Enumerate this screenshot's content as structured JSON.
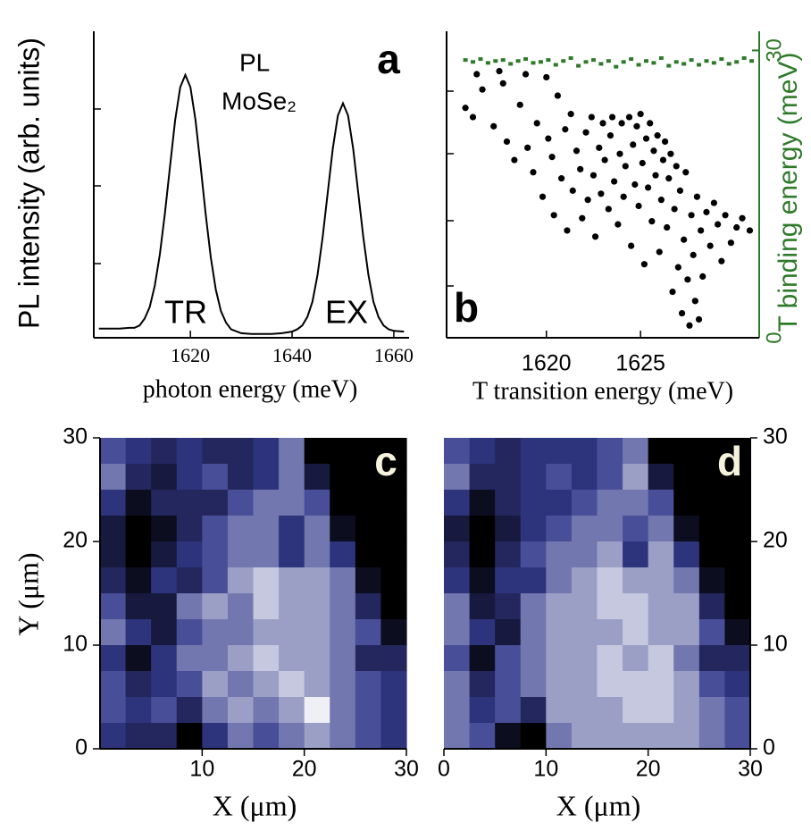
{
  "chart_data": [
    {
      "type": "line",
      "panel_label": "a",
      "ylabel": "PL intensity (arb. units)",
      "xlabel": "photon energy (meV)",
      "annotations": [
        "PL",
        "MoSe₂",
        "TR",
        "EX"
      ],
      "x": [
        1602,
        1604,
        1606,
        1608,
        1609,
        1610,
        1611,
        1612,
        1613,
        1614,
        1615,
        1616,
        1617,
        1618,
        1619,
        1620,
        1621,
        1622,
        1623,
        1624,
        1625,
        1626,
        1627,
        1628,
        1630,
        1632,
        1634,
        1636,
        1638,
        1640,
        1641,
        1642,
        1643,
        1644,
        1645,
        1646,
        1647,
        1648,
        1649,
        1650,
        1651,
        1652,
        1653,
        1654,
        1655,
        1656,
        1657,
        1658,
        1659,
        1660,
        1662
      ],
      "series": [
        {
          "color": "#000000",
          "values": [
            0.12,
            0.12,
            0.12,
            0.13,
            0.13,
            0.16,
            0.25,
            0.4,
            0.68,
            1.09,
            1.63,
            2.24,
            2.84,
            3.27,
            3.43,
            3.27,
            2.84,
            2.24,
            1.61,
            1.05,
            0.63,
            0.35,
            0.2,
            0.11,
            0.06,
            0.05,
            0.05,
            0.05,
            0.06,
            0.08,
            0.11,
            0.16,
            0.27,
            0.47,
            0.82,
            1.31,
            1.89,
            2.47,
            2.9,
            3.06,
            2.9,
            2.47,
            1.89,
            1.31,
            0.82,
            0.47,
            0.27,
            0.16,
            0.11,
            0.09,
            0.08
          ]
        }
      ],
      "xlim": [
        1601,
        1663
      ],
      "xticks": [
        1620,
        1640,
        1660
      ],
      "ylim": [
        0,
        4
      ]
    },
    {
      "type": "scatter",
      "panel_label": "b",
      "xlabel": "T transition energy (meV)",
      "y2label": "T binding energy (meV)",
      "series": [
        {
          "color": "#000000",
          "x": [
            1615.7,
            1616.1,
            1616.3,
            1616.6,
            1617.2,
            1617.5,
            1617.7,
            1617.9,
            1618.3,
            1618.6,
            1618.9,
            1619.0,
            1619.3,
            1619.5,
            1619.8,
            1620.0,
            1620.1,
            1620.3,
            1620.4,
            1620.6,
            1620.8,
            1621.0,
            1621.1,
            1621.3,
            1621.4,
            1621.6,
            1621.8,
            1621.9,
            1622.1,
            1622.2,
            1622.4,
            1622.5,
            1622.6,
            1622.8,
            1622.9,
            1623.0,
            1623.1,
            1623.3,
            1623.4,
            1623.5,
            1623.6,
            1623.8,
            1623.9,
            1624.0,
            1624.1,
            1624.2,
            1624.4,
            1624.5,
            1624.6,
            1624.7,
            1624.8,
            1624.9,
            1625.0,
            1625.1,
            1625.2,
            1625.3,
            1625.4,
            1625.5,
            1625.6,
            1625.7,
            1625.8,
            1625.9,
            1626.0,
            1626.1,
            1626.2,
            1626.3,
            1626.4,
            1626.5,
            1626.6,
            1626.7,
            1626.8,
            1626.9,
            1627.0,
            1627.1,
            1627.2,
            1627.3,
            1627.4,
            1627.5,
            1627.6,
            1627.7,
            1627.8,
            1627.9,
            1628.0,
            1628.1,
            1628.2,
            1628.3,
            1628.5,
            1628.7,
            1628.9,
            1629.1,
            1629.3,
            1629.5,
            1629.8,
            1630.1,
            1630.4,
            1630.8
          ],
          "values": [
            7.5,
            7.2,
            8.6,
            8.1,
            6.9,
            8.7,
            8.3,
            6.4,
            5.8,
            7.6,
            8.6,
            6.2,
            5.4,
            7.0,
            4.6,
            8.5,
            6.5,
            5.9,
            4.0,
            7.9,
            5.2,
            6.8,
            3.5,
            7.3,
            4.8,
            6.1,
            5.5,
            3.9,
            6.7,
            4.5,
            7.2,
            5.3,
            3.3,
            6.2,
            4.7,
            7.0,
            5.8,
            4.2,
            6.6,
            7.2,
            5.1,
            3.7,
            6.0,
            7.0,
            4.6,
            5.6,
            7.2,
            3.0,
            6.3,
            5.0,
            6.9,
            4.3,
            7.3,
            5.7,
            2.4,
            6.5,
            4.9,
            7.0,
            3.8,
            6.1,
            5.3,
            6.6,
            2.8,
            4.5,
            5.8,
            6.4,
            3.6,
            5.2,
            6.0,
            1.5,
            4.2,
            5.6,
            2.3,
            4.8,
            0.8,
            3.2,
            5.4,
            1.9,
            0.4,
            4.0,
            2.7,
            1.2,
            4.6,
            0.6,
            3.5,
            2.0,
            4.1,
            3.0,
            4.4,
            3.7,
            2.5,
            4.0,
            3.1,
            3.6,
            3.9,
            3.5
          ]
        },
        {
          "color": "#2f7a2a",
          "axis": "y2",
          "x": [
            1615.7,
            1616.1,
            1616.5,
            1616.9,
            1617.3,
            1617.7,
            1618.1,
            1618.5,
            1618.9,
            1619.3,
            1619.7,
            1620.1,
            1620.5,
            1620.9,
            1621.3,
            1621.7,
            1622.1,
            1622.5,
            1622.9,
            1623.3,
            1623.7,
            1624.1,
            1624.5,
            1624.9,
            1625.3,
            1625.7,
            1626.1,
            1626.5,
            1626.9,
            1627.3,
            1627.7,
            1628.1,
            1628.5,
            1628.9,
            1629.3,
            1629.7,
            1630.1,
            1630.5,
            1630.9
          ],
          "values": [
            29.0,
            28.8,
            29.1,
            28.7,
            28.9,
            29.0,
            28.6,
            28.9,
            29.1,
            28.7,
            28.8,
            29.0,
            28.5,
            28.9,
            29.2,
            28.4,
            28.8,
            29.0,
            28.6,
            28.9,
            28.3,
            28.8,
            29.1,
            28.5,
            28.9,
            28.7,
            29.2,
            28.4,
            28.8,
            28.6,
            29.0,
            28.5,
            28.9,
            28.7,
            29.1,
            28.6,
            28.8,
            29.2,
            28.9
          ]
        }
      ],
      "xlim": [
        1614.7,
        1631.3
      ],
      "xticks": [
        1620,
        1625
      ],
      "ylim": [
        0,
        10
      ],
      "y2lim": [
        0,
        32
      ],
      "y2ticks": [
        0,
        30
      ],
      "y2color": "#2f7a2a"
    },
    {
      "type": "heatmap",
      "panel_label": "c",
      "xlabel": "X (μm)",
      "ylabel": "Y (μm)",
      "xlim": [
        0,
        30
      ],
      "ylim": [
        0,
        30
      ],
      "xticks": [
        10,
        20,
        30
      ],
      "yticks": [
        0,
        10,
        20,
        30
      ],
      "yaxis_side": "left",
      "colorscale": [
        "#000000",
        "#343a8c",
        "#eef0f5"
      ],
      "zlim": [
        0,
        9
      ],
      "z": [
        [
          5,
          4,
          3,
          4,
          3,
          3,
          4,
          6,
          0,
          0,
          0,
          0
        ],
        [
          6,
          3,
          2,
          4,
          5,
          3,
          4,
          6,
          2,
          0,
          0,
          0
        ],
        [
          4,
          1,
          3,
          3,
          3,
          5,
          6,
          6,
          5,
          0,
          0,
          0
        ],
        [
          2,
          0,
          1,
          3,
          5,
          6,
          6,
          4,
          6,
          1,
          0,
          0
        ],
        [
          2,
          0,
          2,
          4,
          5,
          6,
          6,
          4,
          6,
          4,
          0,
          0
        ],
        [
          3,
          1,
          4,
          3,
          5,
          7,
          8,
          7,
          7,
          6,
          1,
          0
        ],
        [
          5,
          2,
          2,
          6,
          7,
          6,
          8,
          7,
          7,
          6,
          3,
          0
        ],
        [
          6,
          4,
          2,
          5,
          6,
          6,
          7,
          7,
          7,
          6,
          5,
          1
        ],
        [
          4,
          1,
          4,
          6,
          6,
          7,
          8,
          7,
          7,
          6,
          3,
          3
        ],
        [
          5,
          3,
          4,
          5,
          7,
          6,
          7,
          8,
          7,
          6,
          5,
          4
        ],
        [
          5,
          4,
          5,
          3,
          6,
          7,
          6,
          7,
          9,
          6,
          5,
          4
        ],
        [
          4,
          3,
          3,
          0,
          4,
          6,
          5,
          6,
          7,
          6,
          5,
          4
        ]
      ]
    },
    {
      "type": "heatmap",
      "panel_label": "d",
      "xlabel": "X (μm)",
      "xlim": [
        0,
        30
      ],
      "ylim": [
        0,
        30
      ],
      "xticks": [
        0,
        10,
        20,
        30
      ],
      "yticks": [
        0,
        10,
        20,
        30
      ],
      "yaxis_side": "right",
      "colorscale": [
        "#000000",
        "#343a8c",
        "#eef0f5"
      ],
      "zlim": [
        0,
        9
      ],
      "z": [
        [
          5,
          4,
          3,
          4,
          4,
          4,
          5,
          6,
          0,
          0,
          0,
          0
        ],
        [
          6,
          3,
          3,
          4,
          5,
          4,
          5,
          7,
          2,
          0,
          0,
          0
        ],
        [
          4,
          1,
          3,
          4,
          4,
          5,
          6,
          6,
          5,
          0,
          0,
          0
        ],
        [
          2,
          0,
          2,
          4,
          5,
          6,
          6,
          5,
          6,
          1,
          0,
          0
        ],
        [
          3,
          0,
          3,
          5,
          6,
          6,
          7,
          4,
          7,
          4,
          0,
          0
        ],
        [
          4,
          1,
          4,
          4,
          6,
          7,
          8,
          7,
          7,
          6,
          1,
          0
        ],
        [
          6,
          2,
          3,
          6,
          7,
          7,
          8,
          8,
          7,
          7,
          3,
          0
        ],
        [
          6,
          4,
          2,
          6,
          7,
          7,
          7,
          8,
          7,
          7,
          5,
          1
        ],
        [
          5,
          1,
          5,
          6,
          7,
          7,
          8,
          7,
          8,
          6,
          3,
          3
        ],
        [
          6,
          3,
          5,
          6,
          7,
          7,
          8,
          8,
          8,
          7,
          5,
          4
        ],
        [
          6,
          4,
          5,
          3,
          7,
          7,
          7,
          8,
          8,
          7,
          6,
          5
        ],
        [
          6,
          5,
          1,
          0,
          6,
          7,
          7,
          7,
          7,
          7,
          6,
          5
        ]
      ]
    }
  ]
}
